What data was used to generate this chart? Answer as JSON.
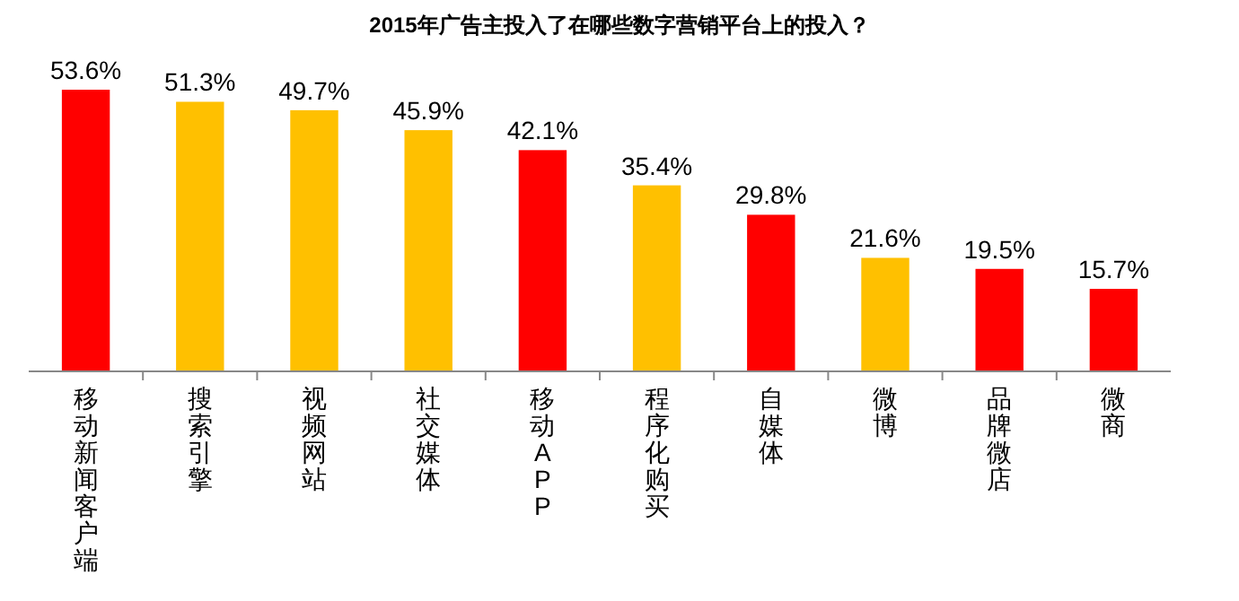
{
  "chart_data": {
    "type": "bar",
    "title": "2015年广告主投入了在哪些数字营销平台上的投入？",
    "categories": [
      "移动新闻客户端",
      "搜索引擎",
      "视频网站",
      "社交媒体",
      "移动APP",
      "程序化购买",
      "自媒体",
      "微博",
      "品牌微店",
      "微商"
    ],
    "values": [
      53.6,
      51.3,
      49.7,
      45.9,
      42.1,
      35.4,
      29.8,
      21.6,
      19.5,
      15.7
    ],
    "colors": [
      "#ff0000",
      "#ffc000",
      "#ffc000",
      "#ffc000",
      "#ff0000",
      "#ffc000",
      "#ff0000",
      "#ffc000",
      "#ff0000",
      "#ff0000"
    ],
    "value_labels": [
      "53.6%",
      "51.3%",
      "49.7%",
      "45.9%",
      "42.1%",
      "35.4%",
      "29.8%",
      "21.6%",
      "19.5%",
      "15.7%"
    ]
  }
}
